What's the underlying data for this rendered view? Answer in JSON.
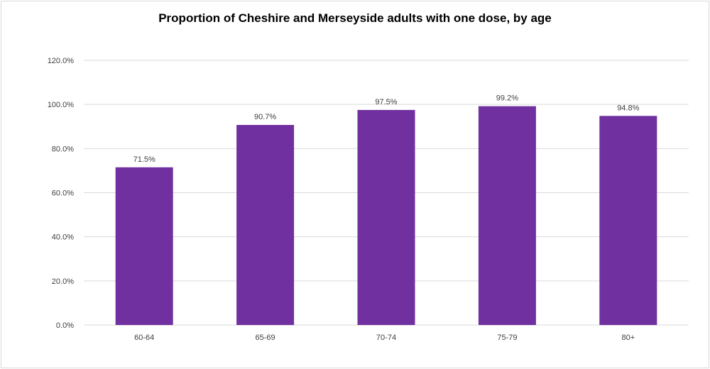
{
  "chart_data": {
    "type": "bar",
    "title": "Proportion of Cheshire and Merseyside adults with one dose, by age",
    "categories": [
      "60-64",
      "65-69",
      "70-74",
      "75-79",
      "80+"
    ],
    "values": [
      71.5,
      90.7,
      97.5,
      99.2,
      94.8
    ],
    "data_labels": [
      "71.5%",
      "90.7%",
      "97.5%",
      "99.2%",
      "94.8%"
    ],
    "xlabel": "",
    "ylabel": "",
    "ylim": [
      0,
      120
    ],
    "yticks": [
      0,
      20,
      40,
      60,
      80,
      100,
      120
    ],
    "ytick_labels": [
      "0.0%",
      "20.0%",
      "40.0%",
      "60.0%",
      "80.0%",
      "100.0%",
      "120.0%"
    ],
    "grid": true,
    "legend": "none",
    "bar_color": "#7030A0",
    "grid_color": "#d9d9d9"
  }
}
